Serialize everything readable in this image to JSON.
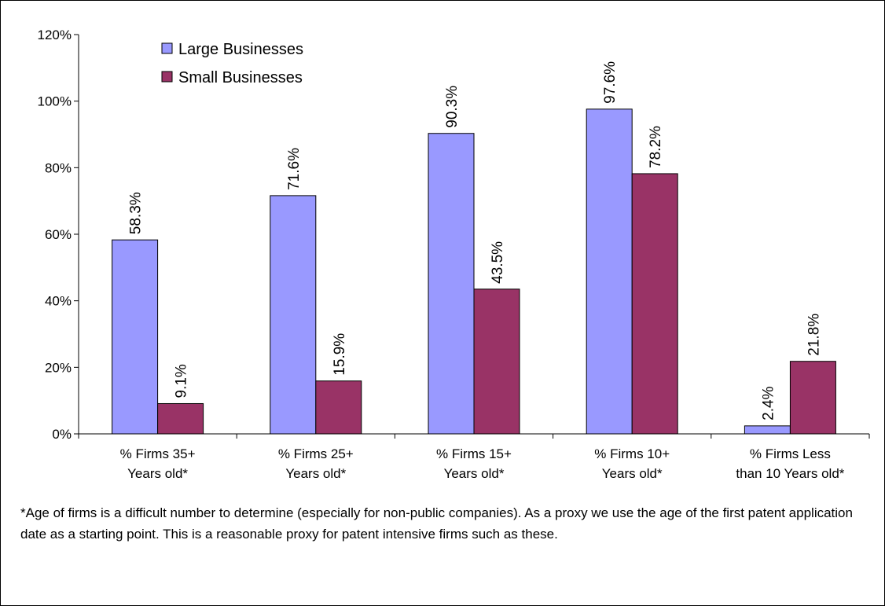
{
  "chart_data": {
    "type": "bar",
    "categories": [
      [
        "% Firms 35+",
        "Years old*"
      ],
      [
        "% Firms 25+",
        "Years old*"
      ],
      [
        "% Firms 15+",
        "Years old*"
      ],
      [
        "% Firms 10+",
        "Years old*"
      ],
      [
        "% Firms Less",
        "than 10 Years old*"
      ]
    ],
    "series": [
      {
        "name": "Large Businesses",
        "color": "#9999ff",
        "values": [
          58.3,
          71.6,
          90.3,
          97.6,
          2.4
        ],
        "labels": [
          "58.3%",
          "71.6%",
          "90.3%",
          "97.6%",
          "2.4%"
        ]
      },
      {
        "name": "Small Businesses",
        "color": "#993366",
        "values": [
          9.1,
          15.9,
          43.5,
          78.2,
          21.8
        ],
        "labels": [
          "9.1%",
          "15.9%",
          "43.5%",
          "78.2%",
          "21.8%"
        ]
      }
    ],
    "ylim": [
      0,
      120
    ],
    "yticks": [
      0,
      20,
      40,
      60,
      80,
      100,
      120
    ],
    "ytick_labels": [
      "0%",
      "20%",
      "40%",
      "60%",
      "80%",
      "100%",
      "120%"
    ],
    "legend_position": "top-left",
    "grid": false,
    "title": "",
    "xlabel": "",
    "ylabel": ""
  },
  "footnote": "*Age of firms is a difficult number to determine (especially for non-public companies).  As a proxy we use the age of the first patent application date as a starting point.  This is a reasonable proxy for patent intensive firms such as these."
}
